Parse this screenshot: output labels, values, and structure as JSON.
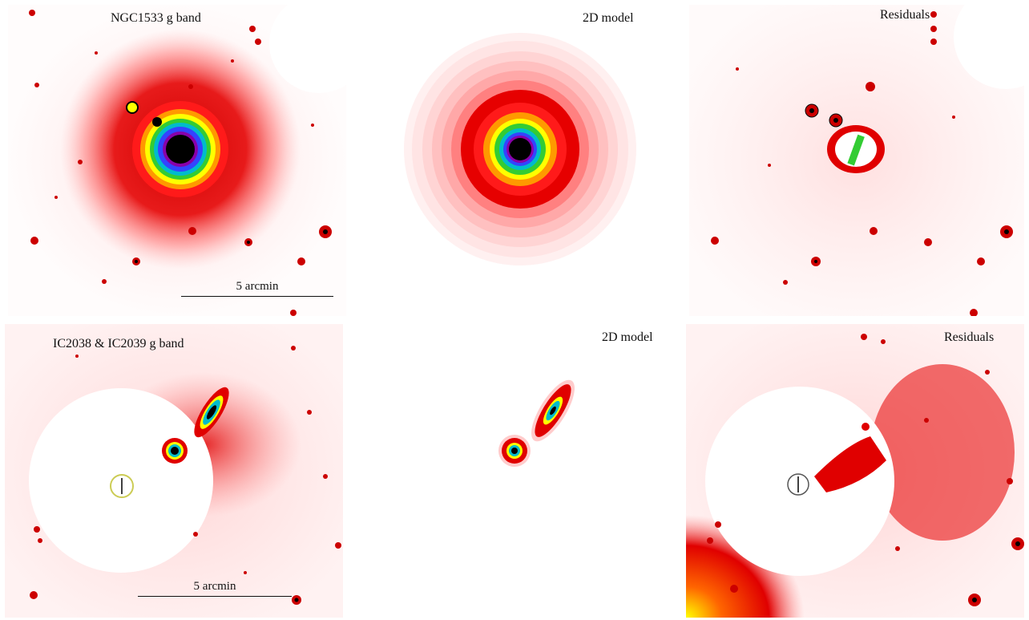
{
  "figure": {
    "rows": [
      {
        "observed": {
          "title": "NGC1533 g band",
          "scalebar": "5 arcmin"
        },
        "model": {
          "title": "2D model"
        },
        "residuals": {
          "title": "Residuals"
        }
      },
      {
        "observed": {
          "title": "IC2038 & IC2039 g band",
          "scalebar": "5 arcmin"
        },
        "model": {
          "title": "2D model"
        },
        "residuals": {
          "title": "Residuals"
        }
      }
    ],
    "colormap": [
      "#ffffff",
      "#ffe0e0",
      "#ffb0b0",
      "#ff5050",
      "#e00000",
      "#ff9900",
      "#ffff00",
      "#33cc33",
      "#00bbcc",
      "#3344ff",
      "#8800aa",
      "#000000"
    ]
  }
}
